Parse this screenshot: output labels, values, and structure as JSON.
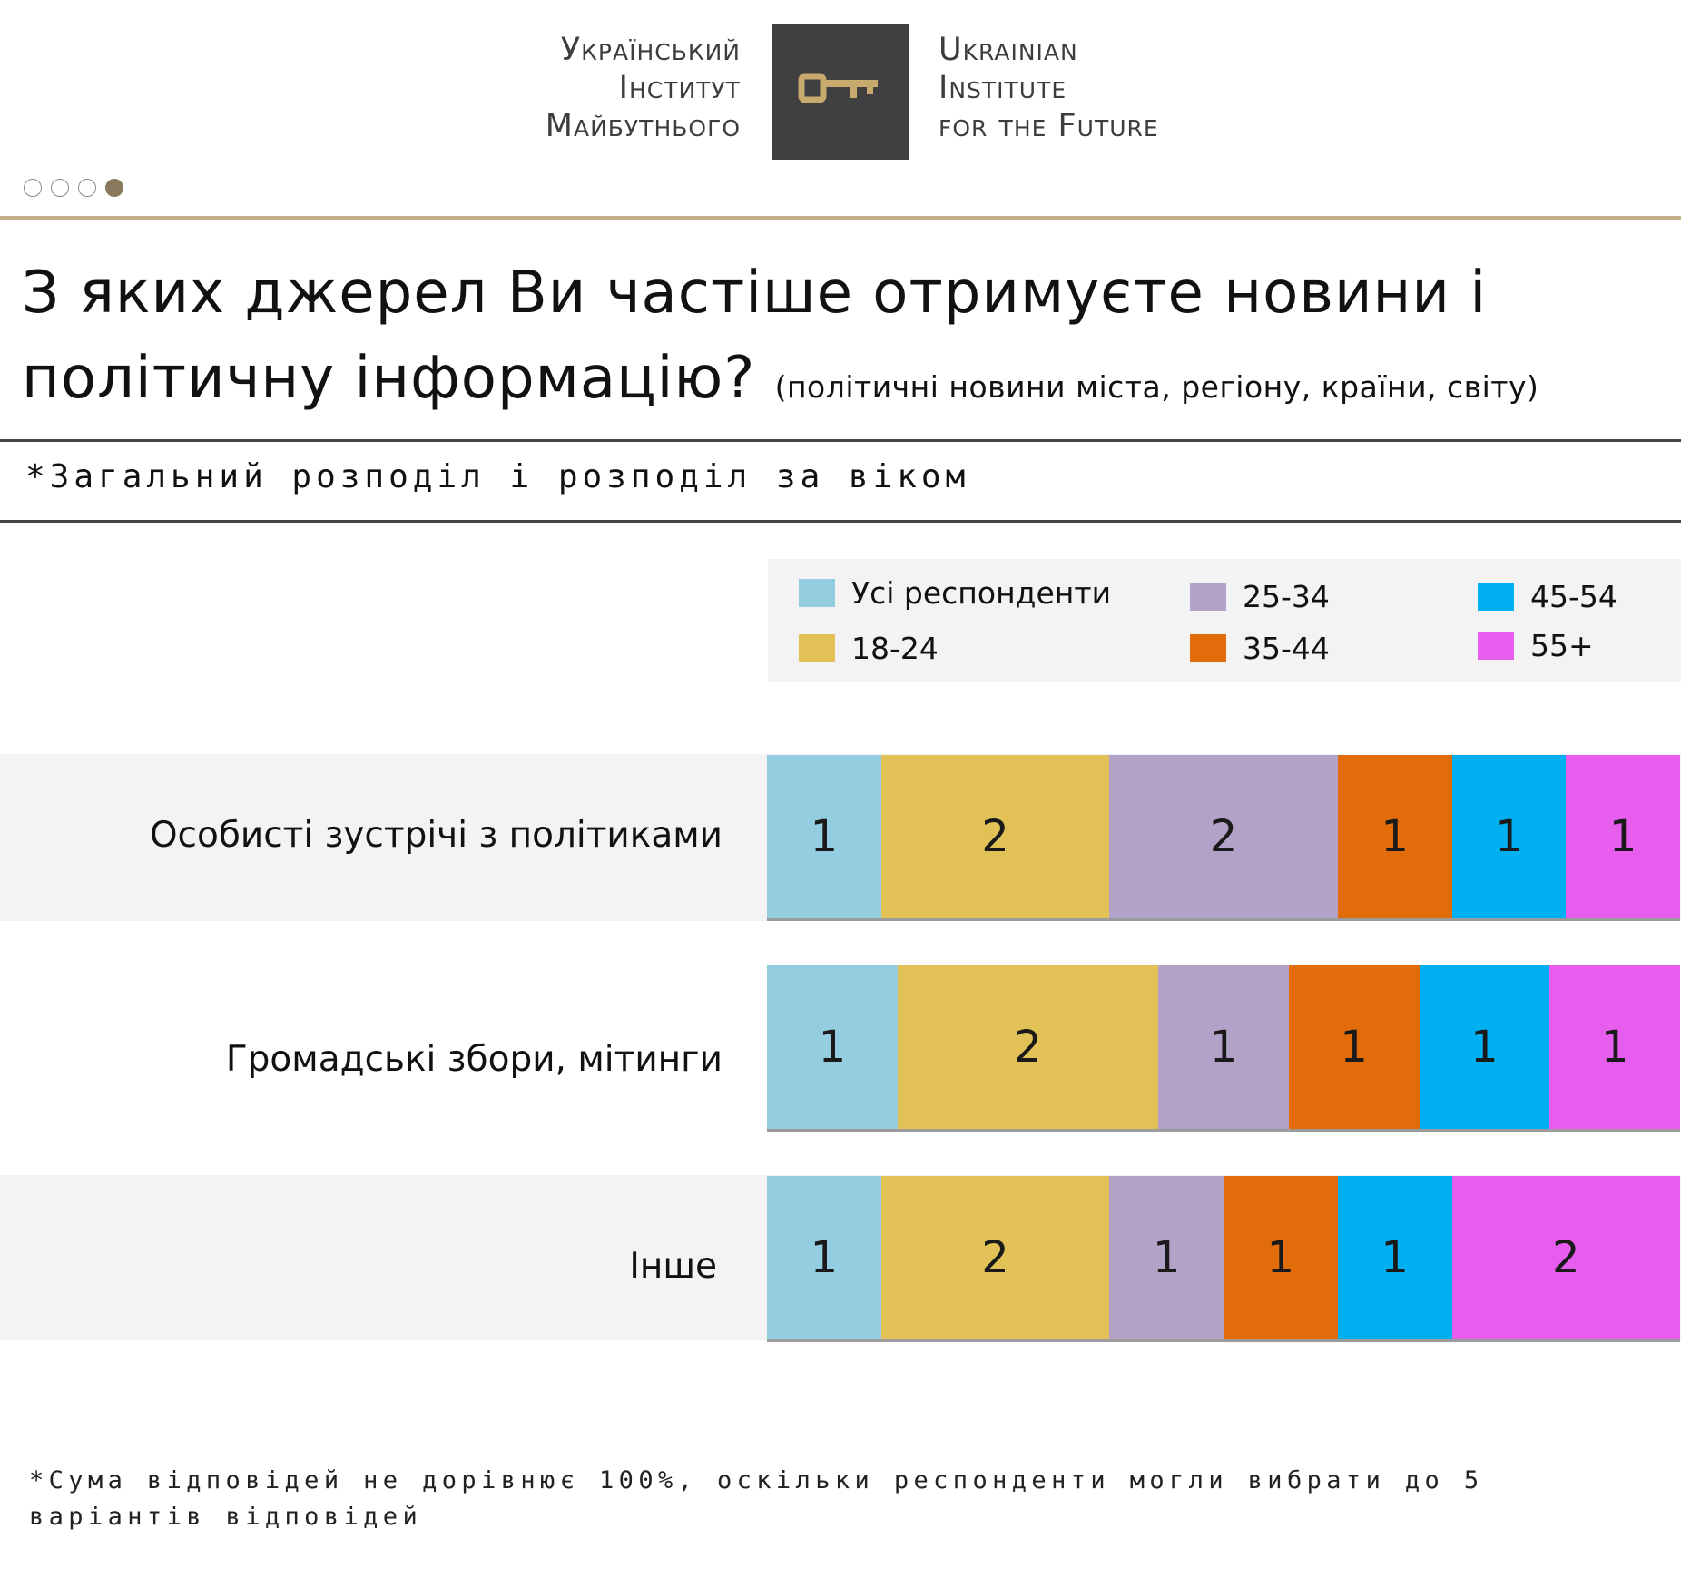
{
  "logo": {
    "ua_lines": [
      "Український",
      "Інститут",
      "Майбутнього"
    ],
    "en_lines": [
      "Ukrainian",
      "Institute",
      "for the Future"
    ],
    "key_icon_color": "#c8a96e",
    "box_color": "#404040"
  },
  "pager": {
    "total": 4,
    "active_index": 3
  },
  "title": {
    "main": "З яких джерел Ви частіше отримуєте новини і політичну інформацію?",
    "sub": "(політичні новини міста, регіону, країни, світу)"
  },
  "subtitle": "*Загальний розподіл і розподіл за віком",
  "legend": [
    {
      "label": "Усі респонденти",
      "color": "#93cddf"
    },
    {
      "label": "18-24",
      "color": "#e2c156"
    },
    {
      "label": "25-34",
      "color": "#b3a2c8"
    },
    {
      "label": "35-44",
      "color": "#e36c0a"
    },
    {
      "label": "45-54",
      "color": "#00b0f0"
    },
    {
      "label": "55+",
      "color": "#e75ded"
    }
  ],
  "chart_data": {
    "type": "bar",
    "stacked": true,
    "orientation": "horizontal",
    "categories": [
      "Особисті зустрічі з політиками",
      "Громадські збори, мітинги",
      "Інше"
    ],
    "series": [
      {
        "name": "Усі респонденти",
        "color": "#93cddf",
        "values": [
          1,
          1,
          1
        ]
      },
      {
        "name": "18-24",
        "color": "#e2c156",
        "values": [
          2,
          2,
          2
        ]
      },
      {
        "name": "25-34",
        "color": "#b3a2c8",
        "values": [
          2,
          1,
          1
        ]
      },
      {
        "name": "35-44",
        "color": "#e36c0a",
        "values": [
          1,
          1,
          1
        ]
      },
      {
        "name": "45-54",
        "color": "#00b0f0",
        "values": [
          1,
          1,
          1
        ]
      },
      {
        "name": "55+",
        "color": "#e75ded",
        "values": [
          1,
          1,
          2
        ]
      }
    ],
    "legend_position": "top-right",
    "data_labels": true,
    "grid": false
  },
  "footnote": "*Сума відповідей не дорівнює 100%, оскільки респонденти могли вибрати до 5 варіантів відповідей"
}
